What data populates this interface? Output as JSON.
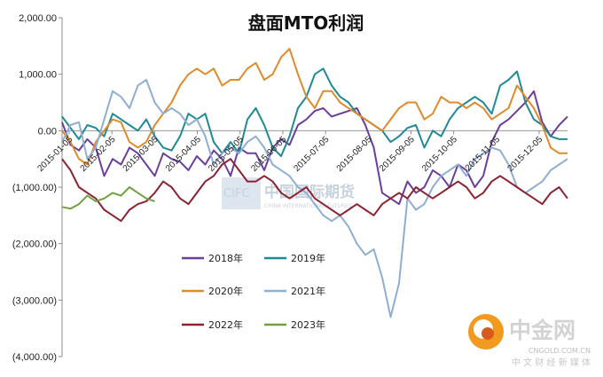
{
  "chart_data": {
    "type": "line",
    "title": "盘面MTO利润",
    "xlabel": "",
    "ylabel": "",
    "ylim": [
      -4000,
      2000
    ],
    "yticks": [
      2000,
      1000,
      0,
      -1000,
      -2000,
      -3000,
      -4000
    ],
    "ytick_labels": [
      "2,000.00",
      "1,000.00",
      "0.00",
      "(1,000.00)",
      "(2,000.00)",
      "(3,000.00)",
      "(4,000.00)"
    ],
    "xtick_labels": [
      "2015-01-05",
      "2015-02-05",
      "2015-03-05",
      "2015-04-05",
      "2015-05-05",
      "2015-06-05",
      "2015-07-05",
      "2015-08-05",
      "2015-09-05",
      "2015-10-05",
      "2015-11-05",
      "2015-12-05"
    ],
    "grid": false,
    "legend_position": "bottom-center (inside plot)",
    "series": [
      {
        "name": "2018年",
        "color": "#6a3f9a",
        "values": [
          150,
          -250,
          -350,
          -150,
          -300,
          -800,
          -500,
          -600,
          -300,
          -400,
          -600,
          -800,
          -400,
          -500,
          -550,
          -700,
          -450,
          -600,
          -350,
          -500,
          -800,
          -300,
          -400,
          -400,
          -700,
          -300,
          -150,
          -250,
          100,
          200,
          350,
          400,
          250,
          300,
          350,
          400,
          100,
          -300,
          -1100,
          -1200,
          -1300,
          -900,
          -1100,
          -1000,
          -700,
          -800,
          -1000,
          -600,
          -700,
          -1000,
          -800,
          -200,
          100,
          200,
          350,
          500,
          700,
          150,
          -100,
          100,
          250
        ]
      },
      {
        "name": "2019年",
        "color": "#1f8a96",
        "values": [
          250,
          50,
          -150,
          100,
          50,
          -100,
          300,
          200,
          100,
          0,
          200,
          -100,
          -300,
          -350,
          -100,
          300,
          200,
          300,
          -200,
          -400,
          -200,
          -400,
          200,
          400,
          100,
          -300,
          -450,
          -100,
          400,
          600,
          1000,
          1100,
          800,
          600,
          500,
          300,
          200,
          100,
          0,
          -200,
          -100,
          50,
          100,
          -300,
          0,
          -100,
          200,
          400,
          500,
          600,
          500,
          300,
          800,
          900,
          1050,
          500,
          200,
          100,
          -100,
          -150,
          -150
        ]
      },
      {
        "name": "2020年",
        "color": "#e08a2c",
        "values": [
          0,
          -200,
          -500,
          -600,
          -200,
          0,
          200,
          150,
          -200,
          -300,
          -200,
          100,
          300,
          500,
          800,
          1000,
          1100,
          1000,
          1100,
          800,
          900,
          900,
          1100,
          1200,
          900,
          1000,
          1300,
          1450,
          1000,
          600,
          400,
          700,
          700,
          500,
          400,
          300,
          200,
          100,
          0,
          200,
          400,
          500,
          500,
          200,
          300,
          600,
          500,
          500,
          400,
          500,
          400,
          200,
          300,
          400,
          800,
          600,
          400,
          100,
          -300,
          -400,
          -400
        ]
      },
      {
        "name": "2021年",
        "color": "#8eaed4",
        "values": [
          -200,
          100,
          150,
          -500,
          -300,
          200,
          700,
          600,
          400,
          800,
          900,
          500,
          300,
          400,
          300,
          100,
          200,
          -100,
          -600,
          -400,
          -300,
          -400,
          -200,
          -100,
          -300,
          -600,
          -700,
          -800,
          -1000,
          -1100,
          -1300,
          -1500,
          -1600,
          -1500,
          -1700,
          -2000,
          -2200,
          -2100,
          -2600,
          -3300,
          -2700,
          -1200,
          -1400,
          -1300,
          -1000,
          -800,
          -700,
          -600,
          -800,
          -500,
          -400,
          -300,
          -350,
          -600,
          -1000,
          -1100,
          -1000,
          -900,
          -700,
          -600,
          -500
        ]
      },
      {
        "name": "2022年",
        "color": "#8b2332",
        "values": [
          -500,
          -700,
          -1000,
          -1100,
          -1200,
          -1400,
          -1500,
          -1600,
          -1400,
          -1300,
          -1250,
          -1100,
          -900,
          -1000,
          -1200,
          -1300,
          -1100,
          -900,
          -800,
          -600,
          -500,
          -700,
          -900,
          -900,
          -800,
          -900,
          -1100,
          -1200,
          -1100,
          -1000,
          -1200,
          -1300,
          -1400,
          -1500,
          -1400,
          -1300,
          -1400,
          -1500,
          -1300,
          -1200,
          -1100,
          -1200,
          -1000,
          -1100,
          -1200,
          -1100,
          -1000,
          -900,
          -1000,
          -1200,
          -1100,
          -900,
          -800,
          -900,
          -1000,
          -1100,
          -1200,
          -1300,
          -1100,
          -1000,
          -1200
        ]
      },
      {
        "name": "2023年",
        "color": "#70a03f",
        "values": [
          -1350,
          -1380,
          -1300,
          -1150,
          -1250,
          -1200,
          -1100,
          -1150,
          -1000,
          -1100,
          -1200,
          -1250
        ]
      }
    ],
    "n_points": 61
  },
  "watermark": {
    "left_text": "CIFC",
    "center_text": "中国国际期货",
    "center_sub": "CHINA INTERNATIONAL FUTURES",
    "logo_name": "中金网",
    "logo_url": "CNGOLD.COM.CN",
    "logo_tagline": "中 文 财 经 新 媒 体"
  }
}
